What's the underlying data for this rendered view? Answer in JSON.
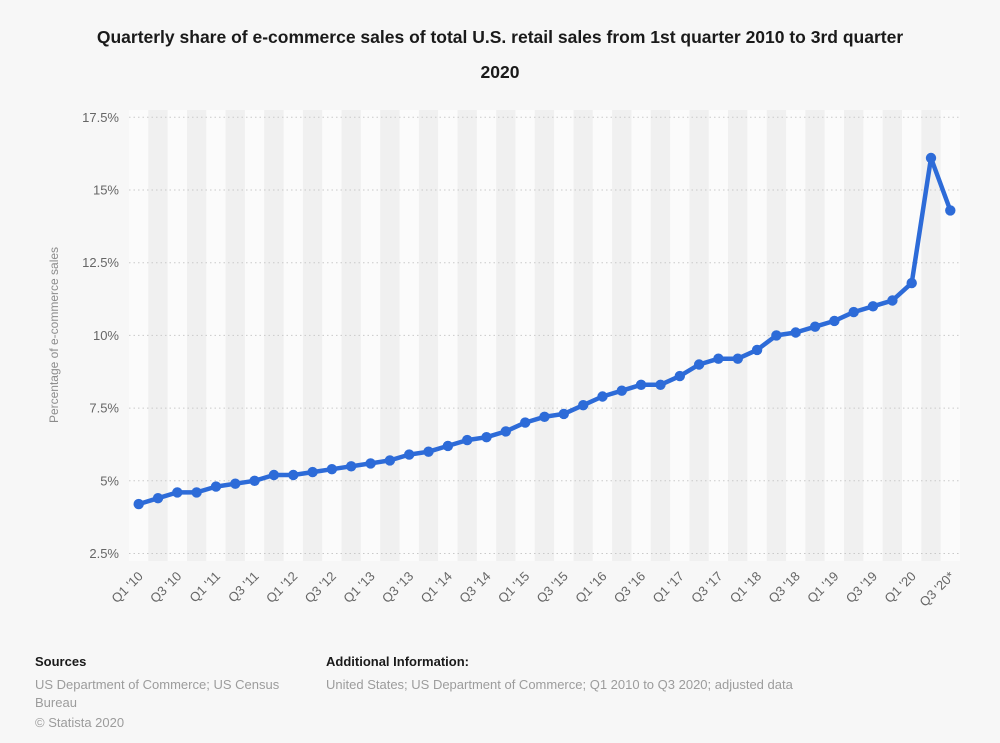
{
  "title": "Quarterly share of e-commerce sales of total U.S. retail sales from 1st quarter 2010 to 3rd quarter 2020",
  "chart_data": {
    "type": "line",
    "title": "Quarterly share of e-commerce sales of total U.S. retail sales from 1st quarter 2010 to 3rd quarter 2020",
    "xlabel": "",
    "ylabel": "Percentage of e-commerce sales",
    "ylim": [
      2.5,
      17.5
    ],
    "yticks": [
      2.5,
      5,
      7.5,
      10,
      12.5,
      15,
      17.5
    ],
    "ytick_labels": [
      "2.5%",
      "5%",
      "7.5%",
      "10%",
      "12.5%",
      "15%",
      "17.5%"
    ],
    "grid": "horizontal-dotted",
    "legend": "none",
    "categories": [
      "Q1 '10",
      "Q2 '10",
      "Q3 '10",
      "Q4 '10",
      "Q1 '11",
      "Q2 '11",
      "Q3 '11",
      "Q4 '11",
      "Q1 '12",
      "Q2 '12",
      "Q3 '12",
      "Q4 '12",
      "Q1 '13",
      "Q2 '13",
      "Q3 '13",
      "Q4 '13",
      "Q1 '14",
      "Q2 '14",
      "Q3 '14",
      "Q4 '14",
      "Q1 '15",
      "Q2 '15",
      "Q3 '15",
      "Q4 '15",
      "Q1 '16",
      "Q2 '16",
      "Q3 '16",
      "Q4 '16",
      "Q1 '17",
      "Q2 '17",
      "Q3 '17",
      "Q4 '17",
      "Q1 '18",
      "Q2 '18",
      "Q3 '18",
      "Q4 '18",
      "Q1 '19",
      "Q2 '19",
      "Q3 '19",
      "Q4 '19",
      "Q1 '20",
      "Q2 '20",
      "Q3 '20*"
    ],
    "x_tick_labels_shown": [
      "Q1 '10",
      "Q3 '10",
      "Q1 '11",
      "Q3 '11",
      "Q1 '12",
      "Q3 '12",
      "Q1 '13",
      "Q3 '13",
      "Q1 '14",
      "Q3 '14",
      "Q1 '15",
      "Q3 '15",
      "Q1 '16",
      "Q3 '16",
      "Q1 '17",
      "Q3 '17",
      "Q1 '18",
      "Q3 '18",
      "Q1 '19",
      "Q3 '19",
      "Q1 '20",
      "Q3 '20*"
    ],
    "values": [
      4.2,
      4.4,
      4.6,
      4.6,
      4.8,
      4.9,
      5.0,
      5.2,
      5.2,
      5.3,
      5.4,
      5.5,
      5.6,
      5.7,
      5.9,
      6.0,
      6.2,
      6.4,
      6.5,
      6.7,
      7.0,
      7.2,
      7.3,
      7.6,
      7.9,
      8.1,
      8.3,
      8.3,
      8.6,
      9.0,
      9.2,
      9.2,
      9.5,
      10.0,
      10.1,
      10.3,
      10.5,
      10.8,
      11.0,
      11.2,
      11.8,
      16.1,
      14.3
    ],
    "line_color": "#2d6bd8"
  },
  "colors": {
    "page_bg": "#f7f7f7",
    "stripe_light": "#fbfbfb",
    "stripe_dark": "#f0f0f0",
    "gridline": "#c9c9c9",
    "axis_text": "#666666",
    "accent_line": "#2d6bd8"
  },
  "footer": {
    "sources_label": "Sources",
    "sources_text": "US Department of Commerce; US Census Bureau",
    "copyright": "© Statista 2020",
    "additional_label": "Additional Information:",
    "additional_text": "United States; US Department of Commerce; Q1 2010 to Q3 2020; adjusted data"
  }
}
